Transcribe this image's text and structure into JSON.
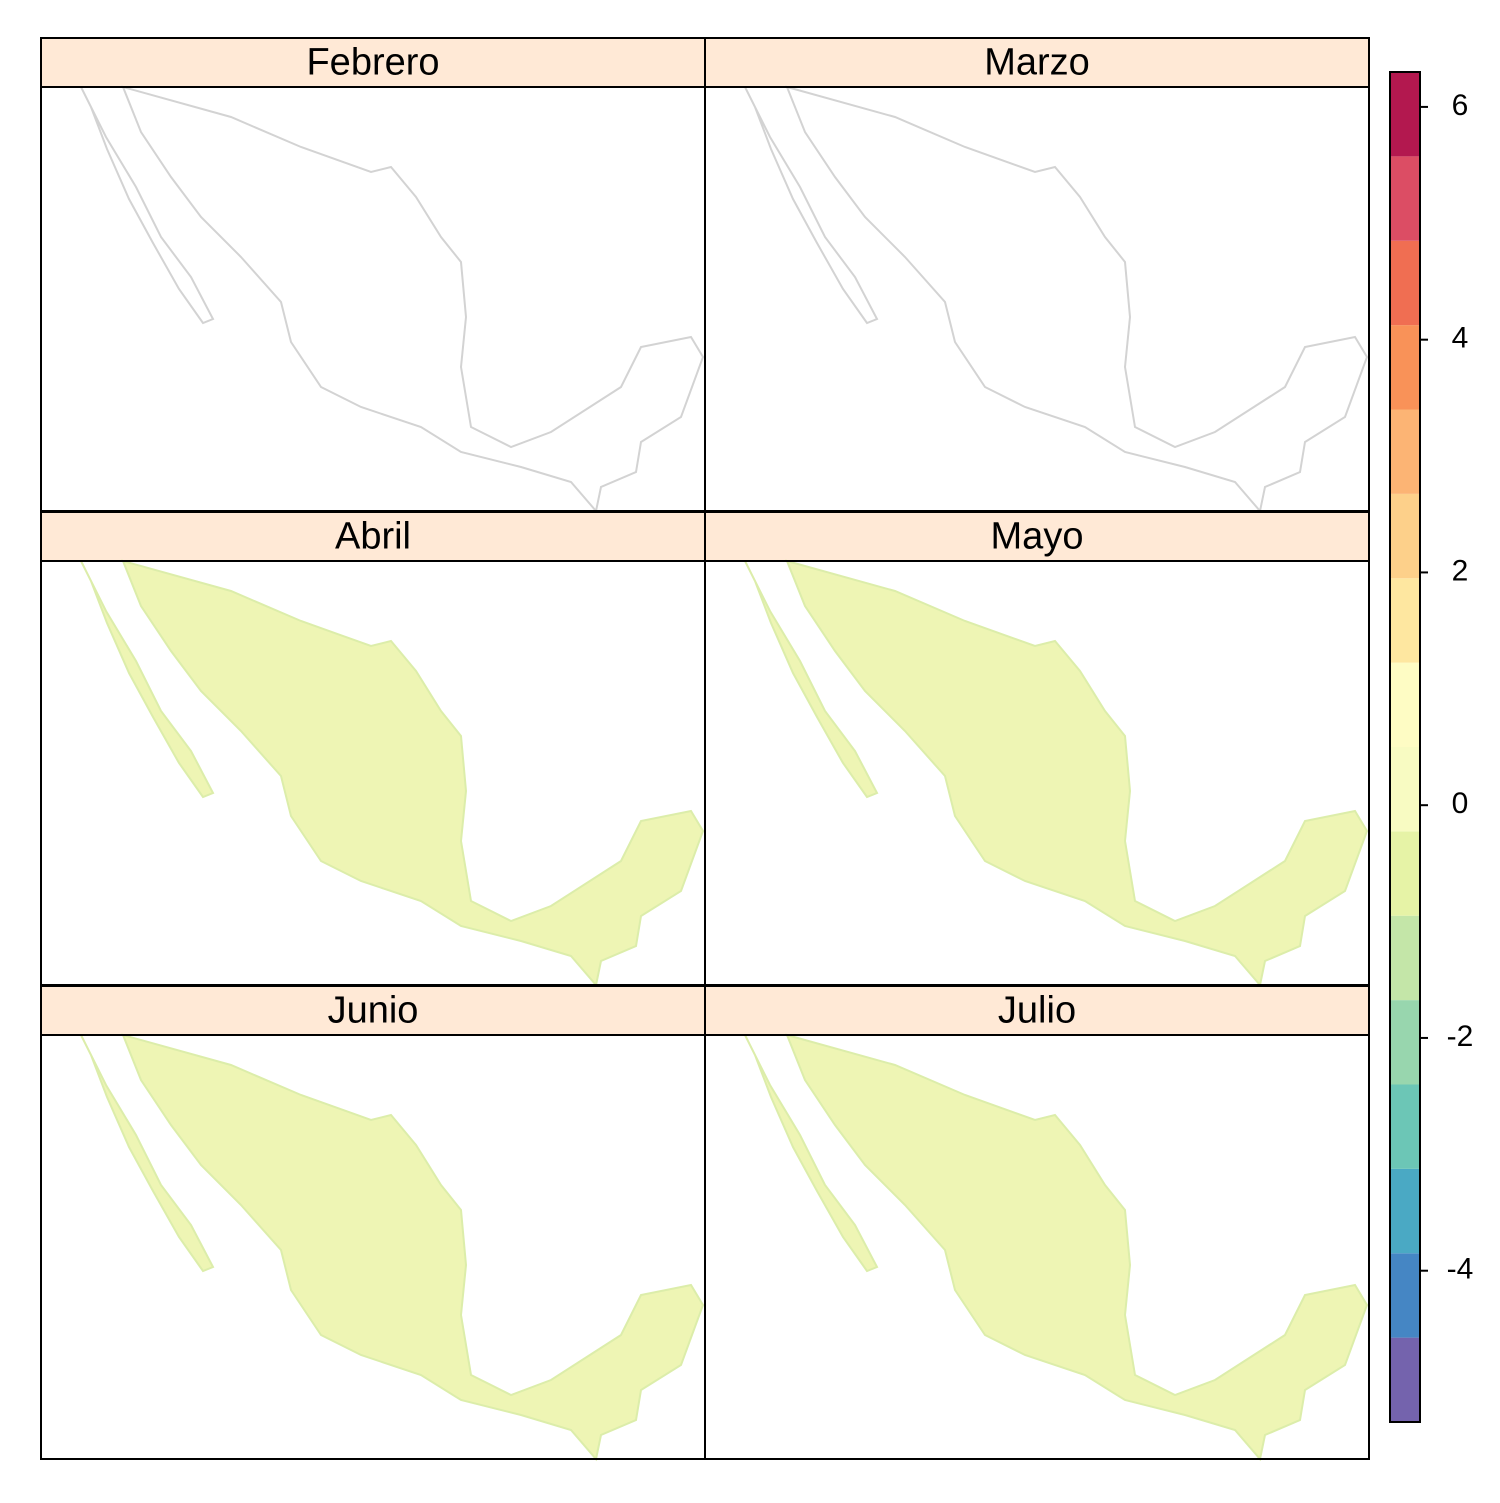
{
  "chart_data": {
    "type": "choropleth",
    "panels": [
      "Febrero",
      "Marzo",
      "Abril",
      "Mayo",
      "Junio",
      "Julio"
    ],
    "colorbar": {
      "lim": [
        -5.3,
        6.3
      ],
      "ticks": [
        -4,
        -2,
        0,
        2,
        4,
        6
      ],
      "breaks": [
        -5.3,
        -4.575,
        -3.85,
        -3.125,
        -2.4,
        -1.675,
        -0.95,
        -0.225,
        0.5,
        1.225,
        1.95,
        2.675,
        3.4,
        4.125,
        4.85,
        5.575,
        6.3
      ],
      "colors": [
        "#7463ad",
        "#4586c4",
        "#4aa9c4",
        "#6cc6b6",
        "#98d6ae",
        "#c4e6a8",
        "#e6f3a6",
        "#f8fbc2",
        "#fefcc4",
        "#fee7a0",
        "#fdd08a",
        "#fcb474",
        "#f99258",
        "#f06e52",
        "#dc4d64",
        "#b3184f"
      ]
    }
  }
}
